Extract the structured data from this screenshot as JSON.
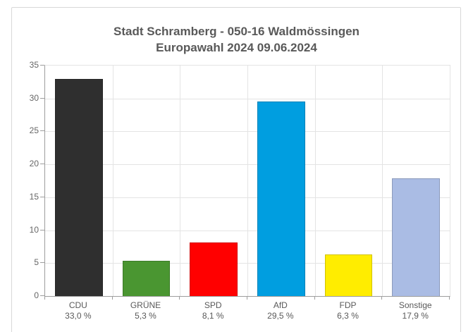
{
  "title": "Stadt Schramberg - 050-16 Waldmössingen",
  "subtitle": "Europawahl 2024 09.06.2024",
  "chart_data": {
    "type": "bar",
    "title": "Stadt Schramberg - 050-16 Waldmössingen",
    "subtitle": "Europawahl 2024 09.06.2024",
    "categories": [
      "CDU",
      "GRÜNE",
      "SPD",
      "AfD",
      "FDP",
      "Sonstige"
    ],
    "category_keys": [
      "cdu",
      "gruene",
      "spd",
      "afd",
      "fdp",
      "sonstige"
    ],
    "values": [
      33.0,
      5.3,
      8.1,
      29.5,
      6.3,
      17.9
    ],
    "value_labels": [
      "33,0 %",
      "5,3 %",
      "8,1 %",
      "29,5 %",
      "6,3 %",
      "17,9 %"
    ],
    "bar_colors": [
      "#2f2f2f",
      "#4a9631",
      "#ff0000",
      "#009ee0",
      "#ffed00",
      "#aabce4"
    ],
    "ylim": [
      0,
      35
    ],
    "yticks": [
      0,
      5,
      10,
      15,
      20,
      25,
      30,
      35
    ],
    "xlabel": "",
    "ylabel": "",
    "grid": true,
    "legend": false
  }
}
